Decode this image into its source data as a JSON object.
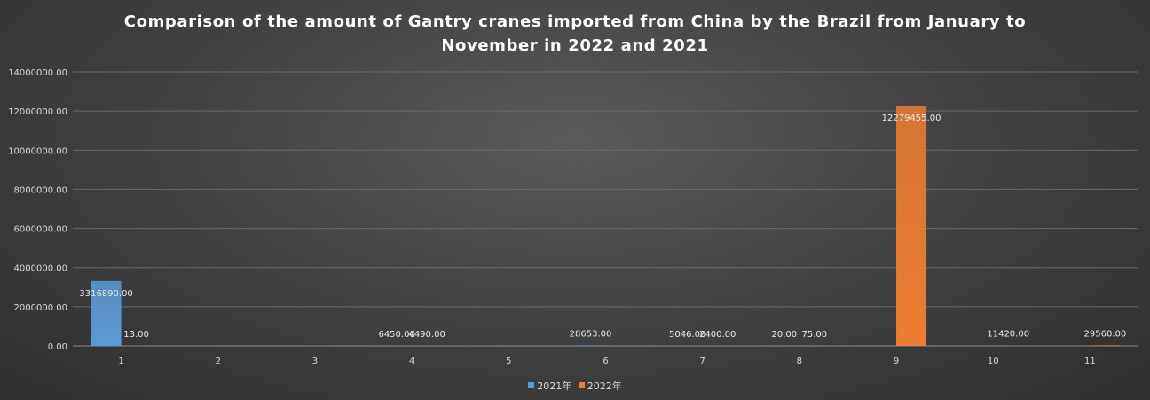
{
  "chart_data": {
    "type": "bar",
    "title": "Comparison of the amount of Gantry cranes imported from China by the Brazil from January to November in 2022 and 2021",
    "xlabel": "",
    "ylabel": "",
    "categories": [
      "1",
      "2",
      "3",
      "4",
      "5",
      "6",
      "7",
      "8",
      "9",
      "10",
      "11"
    ],
    "series": [
      {
        "name": "2021年",
        "color": "#5B9BD5",
        "values": [
          3316890.0,
          null,
          null,
          6450.0,
          null,
          28653.0,
          5046.0,
          20.0,
          null,
          null,
          null
        ],
        "labels": [
          "3316890.00",
          "",
          "",
          "6450.00",
          "",
          "28653.00",
          "5046.00",
          "20.00",
          "",
          "",
          ""
        ]
      },
      {
        "name": "2022年",
        "color": "#ED7D31",
        "values": [
          13.0,
          null,
          null,
          4490.0,
          null,
          null,
          2400.0,
          75.0,
          12279455.0,
          11420.0,
          29560.0
        ],
        "labels": [
          "13.00",
          "",
          "",
          "4490.00",
          "",
          "",
          "2400.00",
          "75.00",
          "12279455.00",
          "11420.00",
          "29560.00"
        ]
      }
    ],
    "ylim": [
      0,
      14000000
    ],
    "yticks": [
      "0.00",
      "2000000.00",
      "4000000.00",
      "6000000.00",
      "8000000.00",
      "10000000.00",
      "12000000.00",
      "14000000.00"
    ],
    "grid": true,
    "legend_position": "bottom"
  }
}
